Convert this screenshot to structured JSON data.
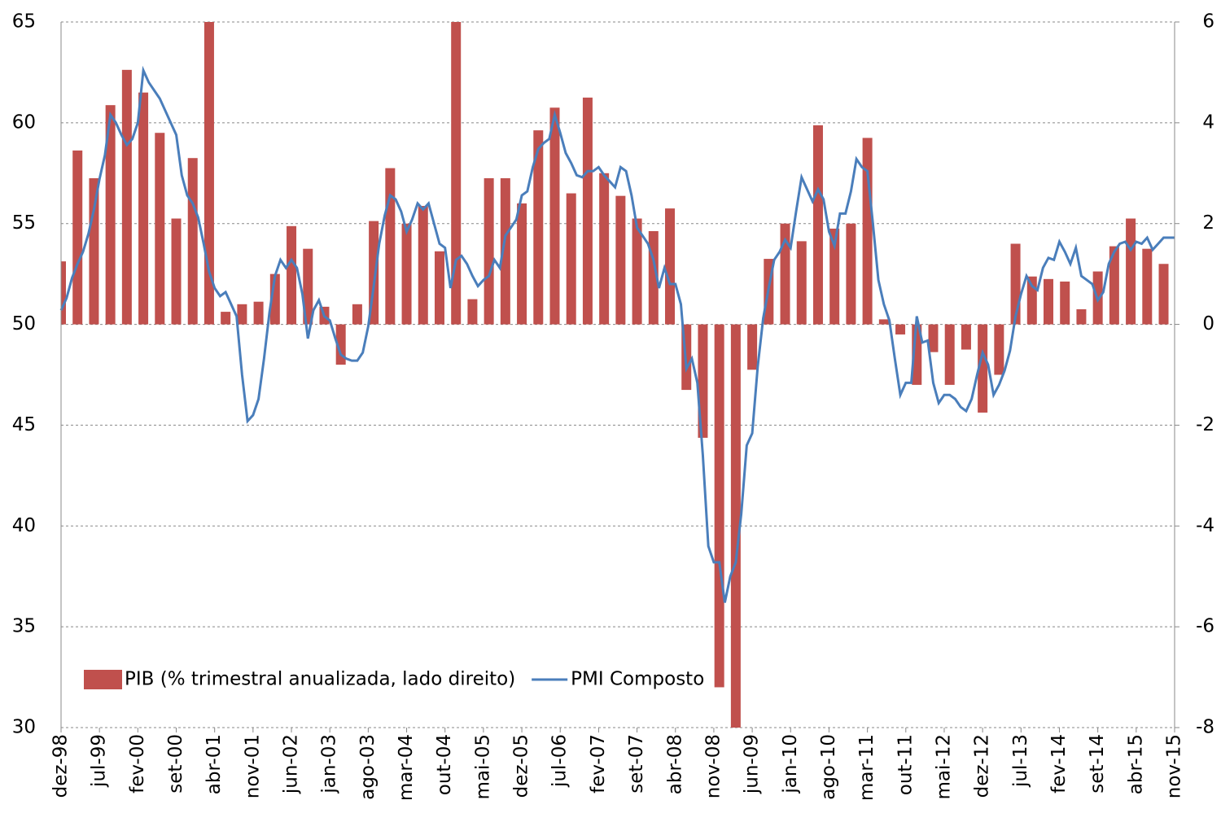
{
  "chart_data": {
    "type": "bar-line",
    "categories": [
      "dez-98",
      null,
      null,
      null,
      null,
      null,
      null,
      "jul-99",
      null,
      null,
      null,
      null,
      null,
      null,
      "fev-00",
      null,
      null,
      null,
      null,
      null,
      null,
      "set-00",
      null,
      null,
      null,
      null,
      null,
      null,
      "abr-01",
      null,
      null,
      null,
      null,
      null,
      null,
      "nov-01",
      null,
      null,
      null,
      null,
      null,
      null,
      "jun-02",
      null,
      null,
      null,
      null,
      null,
      null,
      "jan-03",
      null,
      null,
      null,
      null,
      null,
      null,
      "ago-03",
      null,
      null,
      null,
      null,
      null,
      null,
      "mar-04",
      null,
      null,
      null,
      null,
      null,
      null,
      "out-04",
      null,
      null,
      null,
      null,
      null,
      null,
      "mai-05",
      null,
      null,
      null,
      null,
      null,
      null,
      "dez-05",
      null,
      null,
      null,
      null,
      null,
      null,
      "jul-06",
      null,
      null,
      null,
      null,
      null,
      null,
      "fev-07",
      null,
      null,
      null,
      null,
      null,
      null,
      "set-07",
      null,
      null,
      null,
      null,
      null,
      null,
      "abr-08",
      null,
      null,
      null,
      null,
      null,
      null,
      "nov-08",
      null,
      null,
      null,
      null,
      null,
      null,
      "jun-09",
      null,
      null,
      null,
      null,
      null,
      null,
      "jan-10",
      null,
      null,
      null,
      null,
      null,
      null,
      "ago-10",
      null,
      null,
      null,
      null,
      null,
      null,
      "mar-11",
      null,
      null,
      null,
      null,
      null,
      null,
      "out-11",
      null,
      null,
      null,
      null,
      null,
      null,
      "mai-12",
      null,
      null,
      null,
      null,
      null,
      null,
      "dez-12",
      null,
      null,
      null,
      null,
      null,
      null,
      "jul-13",
      null,
      null,
      null,
      null,
      null,
      null,
      "fev-14",
      null,
      null,
      null,
      null,
      null,
      null,
      "set-14",
      null,
      null,
      null,
      null,
      null,
      null,
      "abr-15",
      null,
      null,
      null,
      null,
      null,
      null,
      "nov-15"
    ],
    "series": [
      {
        "name": "PIB (% trimestral anualizada, lado direito)",
        "type": "bar",
        "axis": "y2",
        "color": "#c0504d",
        "values": [
          1.25,
          null,
          null,
          3.45,
          null,
          null,
          2.9,
          null,
          null,
          4.35,
          null,
          null,
          5.05,
          null,
          null,
          4.6,
          null,
          null,
          3.8,
          null,
          null,
          2.1,
          null,
          null,
          3.3,
          null,
          null,
          7,
          null,
          null,
          0.25,
          null,
          null,
          0.4,
          null,
          null,
          0.45,
          null,
          null,
          1,
          null,
          null,
          1.95,
          null,
          null,
          1.5,
          null,
          null,
          0.35,
          null,
          null,
          -0.8,
          null,
          null,
          0.4,
          null,
          null,
          2.05,
          null,
          null,
          3.1,
          null,
          null,
          2.0,
          null,
          null,
          2.35,
          null,
          null,
          1.45,
          null,
          null,
          7,
          null,
          null,
          0.5,
          null,
          null,
          2.9,
          null,
          null,
          2.9,
          null,
          null,
          2.4,
          null,
          null,
          3.85,
          null,
          null,
          4.3,
          null,
          null,
          2.6,
          null,
          null,
          4.5,
          null,
          null,
          3,
          null,
          null,
          2.55,
          null,
          null,
          2.1,
          null,
          null,
          1.85,
          null,
          null,
          2.3,
          null,
          null,
          -1.3,
          null,
          null,
          -2.25,
          null,
          null,
          -7.2,
          null,
          null,
          -8.5,
          null,
          null,
          -0.9,
          null,
          null,
          1.3,
          null,
          null,
          2,
          null,
          null,
          1.65,
          null,
          null,
          3.95,
          null,
          null,
          1.9,
          null,
          null,
          2,
          null,
          null,
          3.7,
          null,
          null,
          0.1,
          null,
          null,
          -0.2,
          null,
          null,
          -1.2,
          null,
          null,
          -0.55,
          null,
          null,
          -1.2,
          null,
          null,
          -0.5,
          null,
          null,
          -1.75,
          null,
          null,
          -1,
          null,
          null,
          1.6,
          null,
          null,
          0.95,
          null,
          null,
          0.9,
          null,
          null,
          0.85,
          null,
          null,
          0.3,
          null,
          null,
          1.05,
          null,
          null,
          1.55,
          null,
          null,
          2.1,
          null,
          null,
          1.5,
          null,
          null,
          1.2,
          null,
          null
        ]
      },
      {
        "name": "PMI Composto",
        "type": "line",
        "color": "#4a7ebb",
        "values": [
          50.7,
          51.3,
          52.3,
          53,
          53.6,
          54.5,
          55.7,
          57.2,
          58.4,
          60.4,
          60,
          59.4,
          58.9,
          59.2,
          60,
          62.6,
          62,
          61.6,
          61.2,
          60.6,
          60,
          59.4,
          57.4,
          56.4,
          56,
          55.3,
          54,
          52.6,
          51.8,
          51.4,
          51.6,
          51,
          50.4,
          47.5,
          45.2,
          45.5,
          46.3,
          48.3,
          50.6,
          52.4,
          53.2,
          52.8,
          53.2,
          52.8,
          51.5,
          49.3,
          50.7,
          51.2,
          50.4,
          50.2,
          49.3,
          48.5,
          48.3,
          48.2,
          48.2,
          48.6,
          49.9,
          51.9,
          54,
          55.4,
          56.4,
          56.2,
          55.6,
          54.6,
          55.2,
          56,
          55.7,
          56,
          55,
          54,
          53.8,
          51.8,
          53.2,
          53.4,
          53,
          52.4,
          51.9,
          52.2,
          52.4,
          53.2,
          52.8,
          54.4,
          54.8,
          55.2,
          56.4,
          56.6,
          57.8,
          58.7,
          59,
          59.2,
          60.4,
          59.5,
          58.5,
          58,
          57.4,
          57.3,
          57.6,
          57.6,
          57.8,
          57.4,
          57.1,
          56.8,
          57.8,
          57.6,
          56.4,
          54.8,
          54.4,
          54,
          53.2,
          51.8,
          52.8,
          52,
          52,
          51,
          47.8,
          48.3,
          47.1,
          43.5,
          39,
          38.2,
          38.2,
          36.2,
          37.5,
          38.2,
          40.6,
          44,
          44.6,
          47.9,
          50.3,
          51.8,
          53.2,
          53.6,
          54.2,
          53.8,
          55.6,
          57.3,
          56.7,
          56.1,
          56.7,
          56.2,
          54.6,
          53.9,
          55.5,
          55.5,
          56.6,
          58.2,
          57.8,
          57.6,
          55,
          52.2,
          51,
          50.2,
          48.3,
          46.5,
          47.1,
          47.1,
          50.4,
          49.1,
          49.2,
          47.1,
          46.1,
          46.5,
          46.5,
          46.3,
          45.9,
          45.7,
          46.3,
          47.5,
          48.6,
          48,
          46.5,
          47,
          47.7,
          48.7,
          50.4,
          51.5,
          52.4,
          51.9,
          51.7,
          52.8,
          53.3,
          53.2,
          54.1,
          53.6,
          53,
          53.8,
          52.4,
          52.2,
          52,
          51.2,
          51.6,
          53,
          53.6,
          54,
          54.1,
          53.7,
          54.1,
          54,
          54.3,
          53.7,
          54,
          54.3,
          54.3,
          54.3
        ]
      }
    ],
    "ylim": [
      30,
      65
    ],
    "yticks": [
      30,
      35,
      40,
      45,
      50,
      55,
      60,
      65
    ],
    "y2lim": [
      -8,
      6
    ],
    "y2ticks": [
      -8,
      -6,
      -4,
      -2,
      0,
      2,
      4,
      6
    ],
    "grid": true,
    "legend": "bottom-left"
  }
}
